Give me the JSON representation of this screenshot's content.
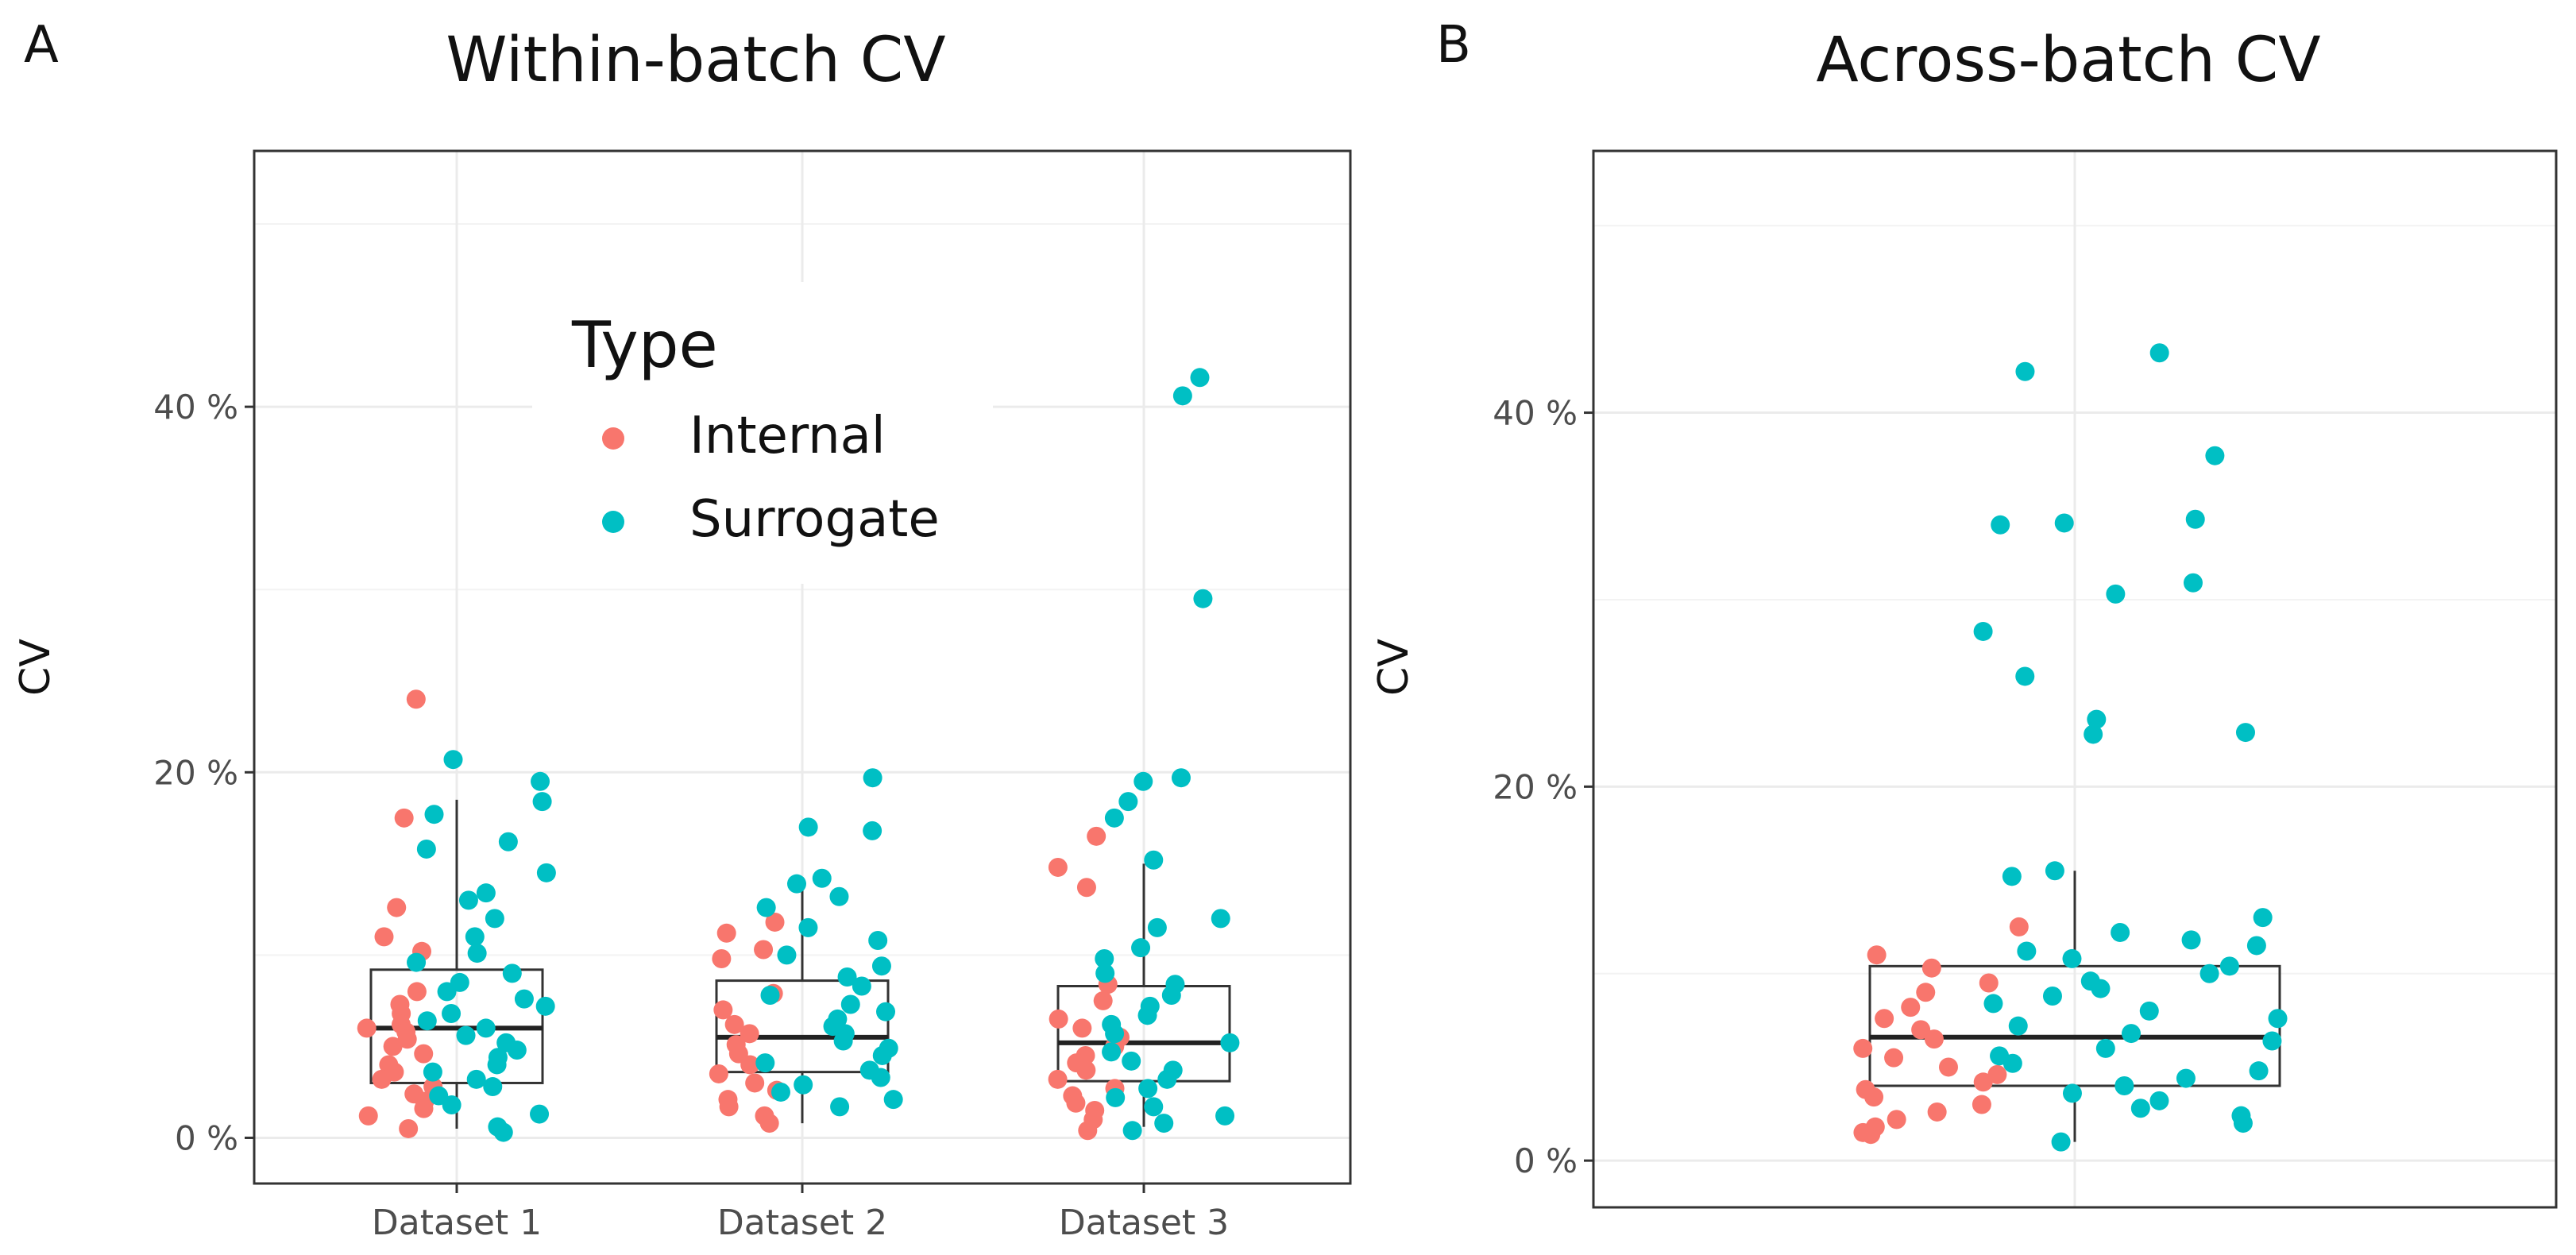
{
  "figure": {
    "panel_a_letter": "A",
    "panel_b_letter": "B"
  },
  "chart_data": [
    {
      "type": "box-jitter",
      "title": "Within-batch CV",
      "xlabel": "",
      "ylabel": "CV",
      "categories": [
        "Dataset 1",
        "Dataset 2",
        "Dataset 3"
      ],
      "yticks": [
        0,
        20,
        40
      ],
      "ytick_labels": [
        "0 %",
        "20 %",
        "40 %"
      ],
      "ylim": [
        -2.5,
        54
      ],
      "grid": true,
      "legend": {
        "title": "Type",
        "placement": "top-center",
        "entries": [
          {
            "label": "Internal",
            "color": "#F8766D"
          },
          {
            "label": "Surrogate",
            "color": "#00BFC4"
          }
        ]
      },
      "boxes": [
        {
          "category": "Dataset 1",
          "min": 0.5,
          "q1": 3.0,
          "median": 6.0,
          "q3": 9.2,
          "max": 18.5
        },
        {
          "category": "Dataset 2",
          "min": 0.8,
          "q1": 3.6,
          "median": 5.5,
          "q3": 8.6,
          "max": 14.0
        },
        {
          "category": "Dataset 3",
          "min": 0.6,
          "q1": 3.1,
          "median": 5.2,
          "q3": 8.3,
          "max": 15.0
        }
      ],
      "series": [
        {
          "name": "Internal",
          "color": "#F8766D",
          "points": [
            [
              1,
              24.0
            ],
            [
              1,
              17.5
            ],
            [
              1,
              12.6
            ],
            [
              1,
              11.0
            ],
            [
              1,
              10.2
            ],
            [
              1,
              8.0
            ],
            [
              1,
              7.3
            ],
            [
              1,
              6.8
            ],
            [
              1,
              6.2
            ],
            [
              1,
              6.0
            ],
            [
              1,
              5.8
            ],
            [
              1,
              5.4
            ],
            [
              1,
              5.0
            ],
            [
              1,
              4.6
            ],
            [
              1,
              4.0
            ],
            [
              1,
              3.6
            ],
            [
              1,
              3.2
            ],
            [
              1,
              2.8
            ],
            [
              1,
              2.4
            ],
            [
              1,
              2.0
            ],
            [
              1,
              1.6
            ],
            [
              1,
              1.2
            ],
            [
              1,
              0.5
            ],
            [
              2,
              11.8
            ],
            [
              2,
              11.2
            ],
            [
              2,
              10.3
            ],
            [
              2,
              9.8
            ],
            [
              2,
              7.9
            ],
            [
              2,
              7.0
            ],
            [
              2,
              6.2
            ],
            [
              2,
              5.7
            ],
            [
              2,
              5.1
            ],
            [
              2,
              4.6
            ],
            [
              2,
              4.0
            ],
            [
              2,
              3.5
            ],
            [
              2,
              3.0
            ],
            [
              2,
              2.6
            ],
            [
              2,
              2.1
            ],
            [
              2,
              1.7
            ],
            [
              2,
              1.2
            ],
            [
              2,
              0.8
            ],
            [
              3,
              16.5
            ],
            [
              3,
              14.8
            ],
            [
              3,
              13.7
            ],
            [
              3,
              8.4
            ],
            [
              3,
              7.5
            ],
            [
              3,
              6.5
            ],
            [
              3,
              6.0
            ],
            [
              3,
              5.5
            ],
            [
              3,
              5.0
            ],
            [
              3,
              4.5
            ],
            [
              3,
              4.1
            ],
            [
              3,
              3.7
            ],
            [
              3,
              3.2
            ],
            [
              3,
              2.7
            ],
            [
              3,
              2.3
            ],
            [
              3,
              1.9
            ],
            [
              3,
              1.5
            ],
            [
              3,
              1.0
            ],
            [
              3,
              0.4
            ]
          ]
        },
        {
          "name": "Surrogate",
          "color": "#00BFC4",
          "points": [
            [
              1,
              20.7
            ],
            [
              1,
              19.5
            ],
            [
              1,
              18.4
            ],
            [
              1,
              17.7
            ],
            [
              1,
              16.2
            ],
            [
              1,
              15.8
            ],
            [
              1,
              14.5
            ],
            [
              1,
              13.4
            ],
            [
              1,
              13.0
            ],
            [
              1,
              12.0
            ],
            [
              1,
              11.0
            ],
            [
              1,
              10.1
            ],
            [
              1,
              9.6
            ],
            [
              1,
              9.0
            ],
            [
              1,
              8.5
            ],
            [
              1,
              8.0
            ],
            [
              1,
              7.6
            ],
            [
              1,
              7.2
            ],
            [
              1,
              6.8
            ],
            [
              1,
              6.4
            ],
            [
              1,
              6.0
            ],
            [
              1,
              5.6
            ],
            [
              1,
              5.2
            ],
            [
              1,
              4.8
            ],
            [
              1,
              4.4
            ],
            [
              1,
              4.0
            ],
            [
              1,
              3.6
            ],
            [
              1,
              3.2
            ],
            [
              1,
              2.8
            ],
            [
              1,
              2.3
            ],
            [
              1,
              1.8
            ],
            [
              1,
              1.3
            ],
            [
              1,
              0.6
            ],
            [
              1,
              0.3
            ],
            [
              2,
              19.7
            ],
            [
              2,
              17.0
            ],
            [
              2,
              16.8
            ],
            [
              2,
              14.2
            ],
            [
              2,
              13.9
            ],
            [
              2,
              13.2
            ],
            [
              2,
              12.6
            ],
            [
              2,
              11.5
            ],
            [
              2,
              10.8
            ],
            [
              2,
              10.0
            ],
            [
              2,
              9.4
            ],
            [
              2,
              8.8
            ],
            [
              2,
              8.3
            ],
            [
              2,
              7.8
            ],
            [
              2,
              7.3
            ],
            [
              2,
              6.9
            ],
            [
              2,
              6.5
            ],
            [
              2,
              6.1
            ],
            [
              2,
              5.7
            ],
            [
              2,
              5.3
            ],
            [
              2,
              4.9
            ],
            [
              2,
              4.5
            ],
            [
              2,
              4.1
            ],
            [
              2,
              3.7
            ],
            [
              2,
              3.3
            ],
            [
              2,
              2.9
            ],
            [
              2,
              2.5
            ],
            [
              2,
              2.1
            ],
            [
              2,
              1.7
            ],
            [
              3,
              41.6
            ],
            [
              3,
              40.6
            ],
            [
              3,
              29.5
            ],
            [
              3,
              19.7
            ],
            [
              3,
              19.5
            ],
            [
              3,
              18.4
            ],
            [
              3,
              17.5
            ],
            [
              3,
              15.2
            ],
            [
              3,
              12.0
            ],
            [
              3,
              11.5
            ],
            [
              3,
              10.4
            ],
            [
              3,
              9.8
            ],
            [
              3,
              9.0
            ],
            [
              3,
              8.4
            ],
            [
              3,
              7.8
            ],
            [
              3,
              7.2
            ],
            [
              3,
              6.7
            ],
            [
              3,
              6.2
            ],
            [
              3,
              5.7
            ],
            [
              3,
              5.2
            ],
            [
              3,
              4.7
            ],
            [
              3,
              4.2
            ],
            [
              3,
              3.7
            ],
            [
              3,
              3.2
            ],
            [
              3,
              2.7
            ],
            [
              3,
              2.2
            ],
            [
              3,
              1.7
            ],
            [
              3,
              1.2
            ],
            [
              3,
              0.8
            ],
            [
              3,
              0.4
            ]
          ]
        }
      ]
    },
    {
      "type": "box-jitter",
      "title": "Across-batch CV",
      "xlabel": "",
      "ylabel": "CV",
      "categories": [
        ""
      ],
      "yticks": [
        0,
        20,
        40
      ],
      "ytick_labels": [
        "0 %",
        "20 %",
        "40 %"
      ],
      "ylim": [
        -2.5,
        54
      ],
      "grid": true,
      "boxes": [
        {
          "category": "",
          "min": 1.0,
          "q1": 4.0,
          "median": 6.6,
          "q3": 10.4,
          "max": 15.5
        }
      ],
      "series": [
        {
          "name": "Internal",
          "color": "#F8766D",
          "points": [
            [
              1,
              12.5
            ],
            [
              1,
              11.0
            ],
            [
              1,
              10.3
            ],
            [
              1,
              9.5
            ],
            [
              1,
              9.0
            ],
            [
              1,
              8.2
            ],
            [
              1,
              7.6
            ],
            [
              1,
              7.0
            ],
            [
              1,
              6.5
            ],
            [
              1,
              6.0
            ],
            [
              1,
              5.5
            ],
            [
              1,
              5.0
            ],
            [
              1,
              4.6
            ],
            [
              1,
              4.2
            ],
            [
              1,
              3.8
            ],
            [
              1,
              3.4
            ],
            [
              1,
              3.0
            ],
            [
              1,
              2.6
            ],
            [
              1,
              2.2
            ],
            [
              1,
              1.8
            ],
            [
              1,
              1.4
            ],
            [
              1,
              1.5
            ]
          ]
        },
        {
          "name": "Surrogate",
          "color": "#00BFC4",
          "points": [
            [
              1,
              43.2
            ],
            [
              1,
              42.2
            ],
            [
              1,
              37.7
            ],
            [
              1,
              34.3
            ],
            [
              1,
              34.1
            ],
            [
              1,
              34.0
            ],
            [
              1,
              30.9
            ],
            [
              1,
              30.3
            ],
            [
              1,
              28.3
            ],
            [
              1,
              25.9
            ],
            [
              1,
              23.6
            ],
            [
              1,
              22.9
            ],
            [
              1,
              22.8
            ],
            [
              1,
              15.5
            ],
            [
              1,
              15.2
            ],
            [
              1,
              13.0
            ],
            [
              1,
              12.2
            ],
            [
              1,
              11.8
            ],
            [
              1,
              11.5
            ],
            [
              1,
              11.2
            ],
            [
              1,
              10.8
            ],
            [
              1,
              10.4
            ],
            [
              1,
              10.0
            ],
            [
              1,
              9.6
            ],
            [
              1,
              9.2
            ],
            [
              1,
              8.8
            ],
            [
              1,
              8.4
            ],
            [
              1,
              8.0
            ],
            [
              1,
              7.6
            ],
            [
              1,
              7.2
            ],
            [
              1,
              6.8
            ],
            [
              1,
              6.4
            ],
            [
              1,
              6.0
            ],
            [
              1,
              5.6
            ],
            [
              1,
              5.2
            ],
            [
              1,
              4.8
            ],
            [
              1,
              4.4
            ],
            [
              1,
              4.0
            ],
            [
              1,
              3.6
            ],
            [
              1,
              3.2
            ],
            [
              1,
              2.8
            ],
            [
              1,
              2.4
            ],
            [
              1,
              2.0
            ],
            [
              1,
              1.0
            ]
          ]
        }
      ]
    }
  ]
}
